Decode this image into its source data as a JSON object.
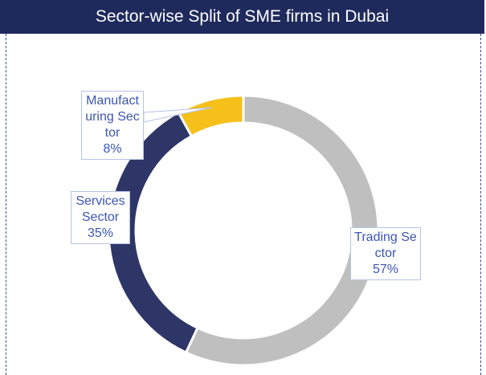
{
  "chart_data": {
    "type": "donut",
    "title": "Sector-wise Split of SME firms in Dubai",
    "categories": [
      "Trading Sector",
      "Services Sector",
      "Manufacturing Sector"
    ],
    "values": [
      57,
      35,
      8
    ],
    "value_labels": [
      "57%",
      "35%",
      "8%"
    ],
    "colors": [
      "#bfbfbf",
      "#2e3567",
      "#f5c01a"
    ]
  }
}
